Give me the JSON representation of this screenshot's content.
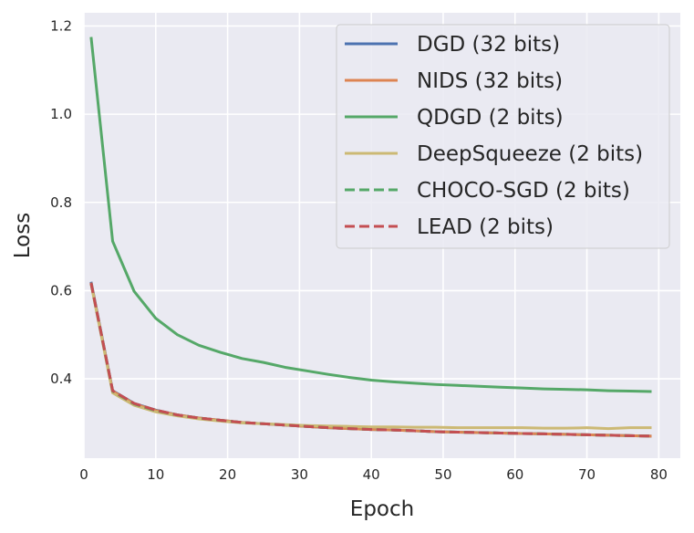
{
  "chart_data": {
    "type": "line",
    "title": "",
    "xlabel": "Epoch",
    "ylabel": "Loss",
    "xlim": [
      0,
      83
    ],
    "ylim": [
      0.22,
      1.23
    ],
    "xticks": [
      0,
      10,
      20,
      30,
      40,
      50,
      60,
      70,
      80
    ],
    "yticks": [
      0.4,
      0.6,
      0.8,
      1.0,
      1.2
    ],
    "ytick_labels": [
      "0.4",
      "0.6",
      "0.8",
      "1.0",
      "1.2"
    ],
    "grid": true,
    "legend_position": "top-right",
    "x": [
      1,
      4,
      7,
      10,
      13,
      16,
      19,
      22,
      25,
      28,
      31,
      34,
      37,
      40,
      43,
      46,
      49,
      52,
      55,
      58,
      61,
      64,
      67,
      70,
      73,
      76,
      79
    ],
    "series": [
      {
        "name": "DGD (32 bits)",
        "color": "#4c72b0",
        "dash": "solid",
        "values": [
          0.62,
          0.373,
          0.344,
          0.329,
          0.318,
          0.311,
          0.306,
          0.301,
          0.298,
          0.295,
          0.292,
          0.289,
          0.287,
          0.285,
          0.284,
          0.282,
          0.28,
          0.279,
          0.278,
          0.277,
          0.276,
          0.275,
          0.274,
          0.273,
          0.272,
          0.271,
          0.27
        ]
      },
      {
        "name": "NIDS (32 bits)",
        "color": "#dd8452",
        "dash": "solid",
        "values": [
          0.618,
          0.372,
          0.343,
          0.328,
          0.318,
          0.311,
          0.306,
          0.301,
          0.298,
          0.295,
          0.292,
          0.289,
          0.287,
          0.285,
          0.284,
          0.282,
          0.28,
          0.279,
          0.278,
          0.277,
          0.276,
          0.275,
          0.274,
          0.273,
          0.272,
          0.271,
          0.27
        ]
      },
      {
        "name": "QDGD (2 bits)",
        "color": "#55a868",
        "dash": "solid",
        "values": [
          1.175,
          0.712,
          0.598,
          0.537,
          0.5,
          0.476,
          0.46,
          0.446,
          0.437,
          0.426,
          0.418,
          0.41,
          0.403,
          0.397,
          0.393,
          0.39,
          0.387,
          0.385,
          0.383,
          0.381,
          0.379,
          0.377,
          0.376,
          0.375,
          0.373,
          0.372,
          0.371
        ]
      },
      {
        "name": "DeepSqueeze (2 bits)",
        "color": "#ccb974",
        "dash": "solid",
        "values": [
          0.615,
          0.368,
          0.34,
          0.325,
          0.316,
          0.309,
          0.304,
          0.3,
          0.298,
          0.296,
          0.294,
          0.293,
          0.292,
          0.291,
          0.291,
          0.29,
          0.29,
          0.289,
          0.289,
          0.289,
          0.289,
          0.288,
          0.288,
          0.289,
          0.287,
          0.289,
          0.289
        ]
      },
      {
        "name": "CHOCO-SGD (2 bits)",
        "color": "#55a868",
        "dash": "dashed",
        "values": [
          0.617,
          0.372,
          0.343,
          0.328,
          0.318,
          0.311,
          0.306,
          0.301,
          0.298,
          0.295,
          0.292,
          0.289,
          0.287,
          0.285,
          0.284,
          0.282,
          0.28,
          0.279,
          0.278,
          0.277,
          0.276,
          0.275,
          0.274,
          0.273,
          0.272,
          0.271,
          0.27
        ]
      },
      {
        "name": "LEAD (2 bits)",
        "color": "#c44e52",
        "dash": "dashed",
        "values": [
          0.617,
          0.373,
          0.344,
          0.329,
          0.318,
          0.311,
          0.306,
          0.301,
          0.298,
          0.295,
          0.292,
          0.289,
          0.287,
          0.285,
          0.284,
          0.282,
          0.28,
          0.279,
          0.278,
          0.277,
          0.276,
          0.275,
          0.274,
          0.273,
          0.272,
          0.271,
          0.27
        ]
      }
    ]
  }
}
